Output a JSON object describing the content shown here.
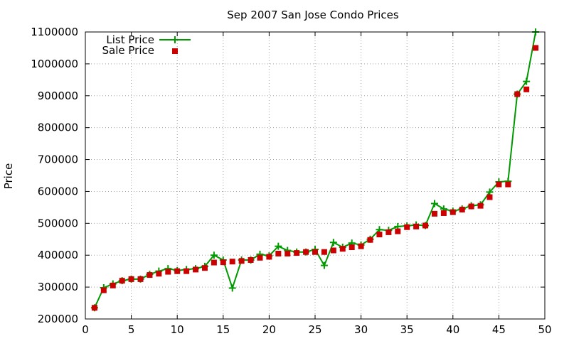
{
  "chart_data": {
    "type": "line",
    "title": "Sep 2007 San Jose Condo Prices",
    "xlabel": "",
    "ylabel": "Price",
    "xlim": [
      0,
      50
    ],
    "ylim": [
      200000,
      1100000
    ],
    "xticks": [
      0,
      5,
      10,
      15,
      20,
      25,
      30,
      35,
      40,
      45,
      50
    ],
    "yticks": [
      200000,
      300000,
      400000,
      500000,
      600000,
      700000,
      800000,
      900000,
      1000000,
      1100000
    ],
    "grid": true,
    "legend_position": "top-left",
    "series": [
      {
        "name": "List Price",
        "style": "line-with-plus-markers",
        "color": "#009900",
        "x": [
          1,
          2,
          3,
          4,
          5,
          6,
          7,
          8,
          9,
          10,
          11,
          12,
          13,
          14,
          15,
          16,
          17,
          18,
          19,
          20,
          21,
          22,
          23,
          24,
          25,
          26,
          27,
          28,
          29,
          30,
          31,
          32,
          33,
          34,
          35,
          36,
          37,
          38,
          39,
          40,
          41,
          42,
          43,
          44,
          45,
          46,
          47,
          48,
          49
        ],
        "values": [
          235000,
          298000,
          310000,
          320000,
          325000,
          325000,
          340000,
          350000,
          358000,
          352000,
          355000,
          358000,
          365000,
          400000,
          385000,
          297000,
          385000,
          385000,
          403000,
          398000,
          428000,
          415000,
          410000,
          410000,
          418000,
          368000,
          440000,
          425000,
          438000,
          432000,
          450000,
          480000,
          478000,
          490000,
          492000,
          495000,
          493000,
          562000,
          545000,
          538000,
          545000,
          555000,
          558000,
          598000,
          630000,
          632000,
          905000,
          945000,
          1100000
        ]
      },
      {
        "name": "Sale Price",
        "style": "square-markers",
        "color": "#cc0000",
        "x": [
          1,
          2,
          3,
          4,
          5,
          6,
          7,
          8,
          9,
          10,
          11,
          12,
          13,
          14,
          15,
          16,
          17,
          18,
          19,
          20,
          21,
          22,
          23,
          24,
          25,
          26,
          27,
          28,
          29,
          30,
          31,
          32,
          33,
          34,
          35,
          36,
          37,
          38,
          39,
          40,
          41,
          42,
          43,
          44,
          45,
          46,
          47,
          48,
          49
        ],
        "values": [
          235000,
          290000,
          305000,
          320000,
          325000,
          325000,
          338000,
          342000,
          348000,
          350000,
          350000,
          355000,
          360000,
          377000,
          378000,
          380000,
          382000,
          385000,
          392000,
          395000,
          405000,
          405000,
          407000,
          410000,
          410000,
          410000,
          415000,
          420000,
          425000,
          428000,
          448000,
          465000,
          472000,
          475000,
          488000,
          490000,
          493000,
          530000,
          532000,
          535000,
          543000,
          553000,
          555000,
          582000,
          622000,
          622000,
          905000,
          920000,
          1050000
        ]
      }
    ]
  }
}
